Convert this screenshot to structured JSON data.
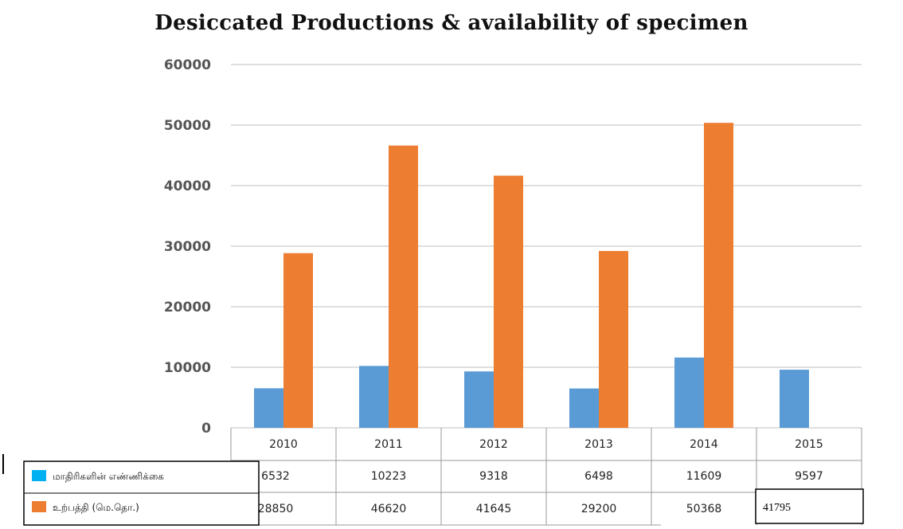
{
  "chart_data": {
    "type": "bar",
    "title": "Desiccated Productions & availability of specimen",
    "categories": [
      "2010",
      "2011",
      "2012",
      "2013",
      "2014",
      "2015"
    ],
    "series": [
      {
        "name": "மாதிரிகளின் எண்ணிக்கை",
        "color": "#5b9bd5",
        "swatch": "#00b0f0",
        "values": [
          6532,
          10223,
          9318,
          6498,
          11609,
          9597
        ]
      },
      {
        "name": "உற்பத்தி (மெ.தொ.)",
        "color": "#ed7d31",
        "swatch": "#ed7d31",
        "values": [
          28850,
          46620,
          41645,
          29200,
          50368,
          null
        ]
      }
    ],
    "table_values": [
      [
        "6532",
        "10223",
        "9318",
        "6498",
        "11609",
        "9597"
      ],
      [
        "28850",
        "46620",
        "41645",
        "29200",
        "50368",
        "41795"
      ]
    ],
    "yticks": [
      "0",
      "10000",
      "20000",
      "30000",
      "40000",
      "50000",
      "60000"
    ],
    "ylim": [
      0,
      60000
    ],
    "grid": true,
    "legend_placement": "bottom-left, in data table"
  }
}
